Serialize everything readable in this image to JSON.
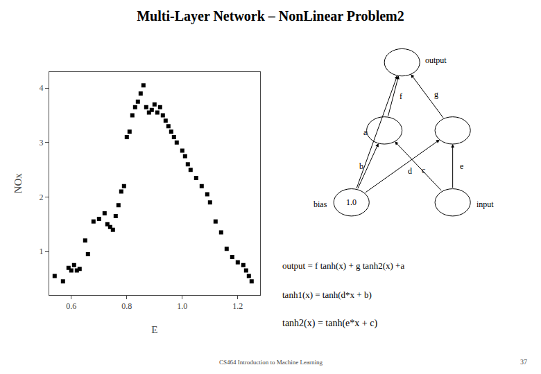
{
  "chart_data": {
    "type": "scatter",
    "title": "Multi-Layer Network – NonLinear Problem2",
    "xlabel": "E",
    "ylabel": "NOx",
    "x": [
      0.54,
      0.57,
      0.59,
      0.6,
      0.61,
      0.62,
      0.63,
      0.65,
      0.66,
      0.68,
      0.7,
      0.72,
      0.73,
      0.74,
      0.75,
      0.76,
      0.77,
      0.78,
      0.79,
      0.8,
      0.81,
      0.82,
      0.83,
      0.84,
      0.85,
      0.86,
      0.87,
      0.88,
      0.89,
      0.9,
      0.91,
      0.92,
      0.93,
      0.94,
      0.95,
      0.96,
      0.97,
      0.98,
      1.0,
      1.01,
      1.02,
      1.03,
      1.05,
      1.07,
      1.09,
      1.1,
      1.12,
      1.14,
      1.16,
      1.18,
      1.2,
      1.22,
      1.23,
      1.24,
      1.25
    ],
    "values": [
      0.55,
      0.45,
      0.7,
      0.65,
      0.75,
      0.65,
      0.68,
      1.2,
      0.95,
      1.55,
      1.6,
      1.7,
      1.5,
      1.45,
      1.4,
      1.65,
      1.85,
      2.1,
      2.2,
      3.1,
      3.2,
      3.5,
      3.65,
      3.75,
      3.9,
      4.05,
      3.65,
      3.55,
      3.6,
      3.7,
      3.55,
      3.65,
      3.5,
      3.4,
      3.3,
      3.2,
      3.1,
      3.0,
      2.85,
      2.75,
      2.6,
      2.5,
      2.35,
      2.2,
      2.05,
      1.9,
      1.55,
      1.35,
      1.05,
      0.9,
      0.8,
      0.75,
      0.65,
      0.55,
      0.45
    ],
    "color": "#000000",
    "marker": "square",
    "xlim": [
      0.52,
      1.28
    ],
    "xticks": [
      0.6,
      0.8,
      {
        "value": 1.0,
        "label": "1.0"
      },
      1.2
    ],
    "ylim": [
      0.2,
      4.3
    ],
    "yticks": [
      1,
      2,
      3,
      4
    ],
    "grid": false,
    "annotations": [
      "output",
      "bias",
      "input",
      "1.0",
      "a",
      "f",
      "g",
      "b",
      "c",
      "d",
      "e",
      "output = f tanh(x) + g tanh2(x) +a",
      "tanh1(x) = tanh(d*x + b)",
      "tanh2(x) = tanh(e*x + c)",
      "CS464 Introduction to Machine Learning",
      "37"
    ]
  }
}
